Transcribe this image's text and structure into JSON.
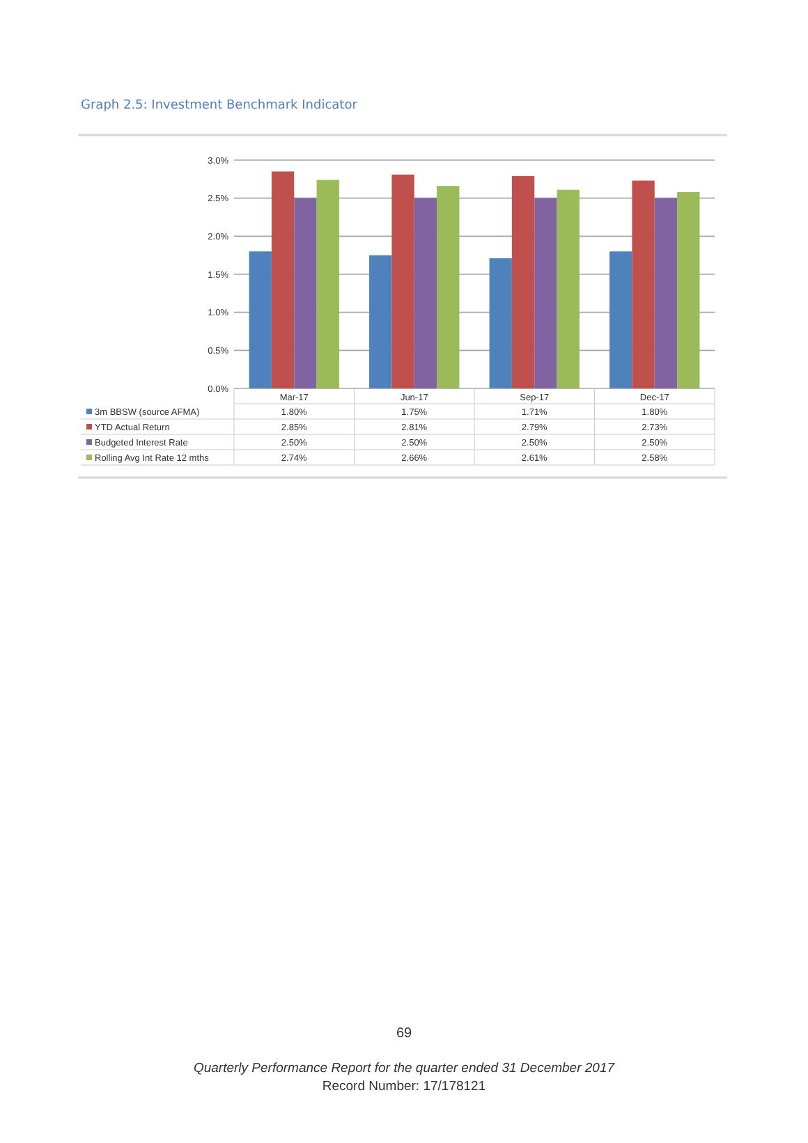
{
  "chart_data": {
    "type": "bar",
    "title": "Graph 2.5:  Investment Benchmark Indicator",
    "categories": [
      "Mar-17",
      "Jun-17",
      "Sep-17",
      "Dec-17"
    ],
    "series": [
      {
        "name": "3m BBSW (source AFMA)",
        "color": "#4f81bd",
        "values": [
          1.8,
          1.75,
          1.71,
          1.8
        ],
        "value_labels": [
          "1.80%",
          "1.75%",
          "1.71%",
          "1.80%"
        ]
      },
      {
        "name": "YTD Actual Return",
        "color": "#c0504d",
        "values": [
          2.85,
          2.81,
          2.79,
          2.73
        ],
        "value_labels": [
          "2.85%",
          "2.81%",
          "2.79%",
          "2.73%"
        ]
      },
      {
        "name": "Budgeted Interest Rate",
        "color": "#8064a2",
        "values": [
          2.5,
          2.5,
          2.5,
          2.5
        ],
        "value_labels": [
          "2.50%",
          "2.50%",
          "2.50%",
          "2.50%"
        ]
      },
      {
        "name": "Rolling Avg Int Rate 12 mths",
        "color": "#9bbb59",
        "values": [
          2.74,
          2.66,
          2.61,
          2.58
        ],
        "value_labels": [
          "2.74%",
          "2.66%",
          "2.61%",
          "2.58%"
        ]
      }
    ],
    "ylim": [
      0,
      3
    ],
    "yticks": [
      {
        "value": 0,
        "label": "0.0%"
      },
      {
        "value": 0.5,
        "label": "0.5%"
      },
      {
        "value": 1,
        "label": "1.0%"
      },
      {
        "value": 1.5,
        "label": "1.5%"
      },
      {
        "value": 2,
        "label": "2.0%"
      },
      {
        "value": 2.5,
        "label": "2.5%"
      },
      {
        "value": 3,
        "label": "3.0%"
      }
    ],
    "grid": "y",
    "legend": "bottom",
    "annotations": [
      "69",
      "Quarterly Performance Report for the quarter ended 31 December 2017",
      "Record Number: 17/178121"
    ]
  }
}
